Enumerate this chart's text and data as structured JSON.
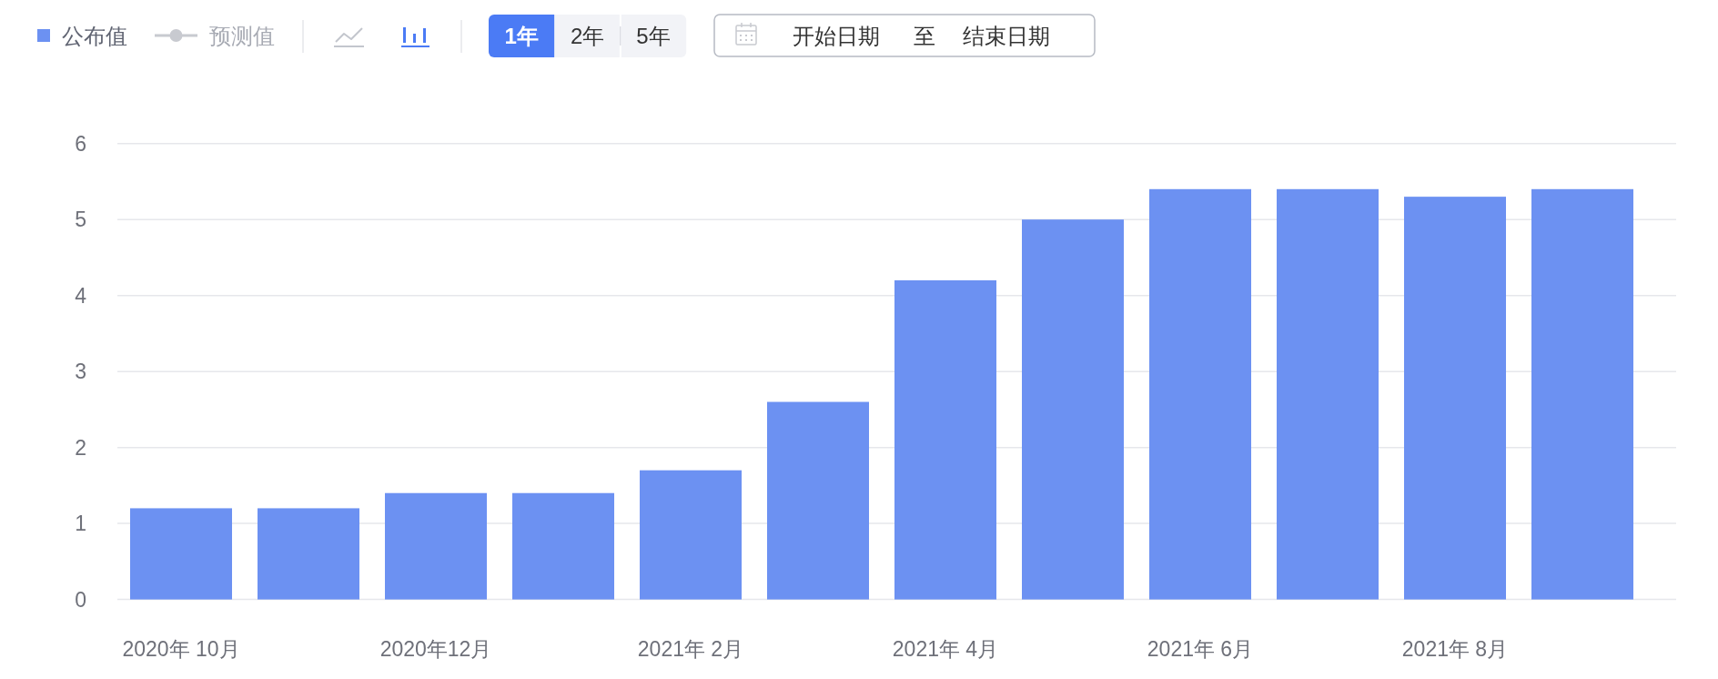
{
  "chart_data": {
    "type": "bar",
    "categories": [
      "2020年 10月",
      null,
      "2020年12月",
      null,
      "2021年 2月",
      null,
      "2021年 4月",
      null,
      "2021年 6月",
      null,
      "2021年 8月",
      null
    ],
    "series": [
      {
        "name": "公布值",
        "color": "#6c91f2",
        "values": [
          1.2,
          1.2,
          1.4,
          1.4,
          1.7,
          2.6,
          4.2,
          5.0,
          5.4,
          5.4,
          5.3,
          5.4
        ]
      },
      {
        "name": "预测值",
        "type": "line",
        "color": "#c8cad0",
        "marker": "circle",
        "values": [
          null,
          null,
          null,
          null,
          null,
          null,
          null,
          null,
          null,
          null,
          null,
          null
        ]
      }
    ],
    "ylim": [
      0,
      6
    ],
    "yticks": [
      0,
      1,
      2,
      3,
      4,
      5,
      6
    ],
    "grid": "y",
    "legend": "top left",
    "annotations": [
      "1年",
      "2年",
      "5年",
      "开始日期",
      "至",
      "结束日期"
    ]
  }
}
